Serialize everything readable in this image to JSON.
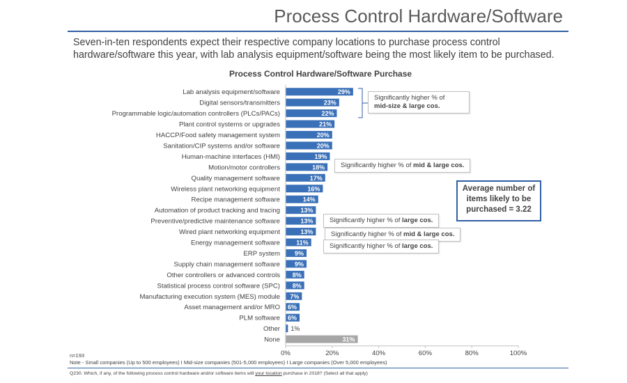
{
  "page": {
    "title": "Process Control Hardware/Software",
    "subtitle": "Seven-in-ten respondents expect their respective company locations to purchase process control hardware/software this year, with lab analysis equipment/software being the most likely item to be purchased."
  },
  "chart_data": {
    "type": "bar",
    "orientation": "horizontal",
    "title": "Process Control Hardware/Software Purchase",
    "categories": [
      "Lab analysis equipment/software",
      "Digital sensors/transmitters",
      "Programmable logic/automation controllers (PLCs/PACs)",
      "Plant control systems or upgrades",
      "HACCP/Food safety management system",
      "Sanitation/CIP systems and/or software",
      "Human-machine interfaces (HMI)",
      "Motion/motor controllers",
      "Quality management software",
      "Wireless plant networking equipment",
      "Recipe management software",
      "Automation of product tracking and tracing",
      "Preventive/predictive maintenance software",
      "Wired plant networking equipment",
      "Energy management software",
      "ERP system",
      "Supply chain management software",
      "Other controllers or advanced controls",
      "Statistical process control software (SPC)",
      "Manufacturing execution system (MES) module",
      "Asset management and/or MRO",
      "PLM software",
      "Other",
      "None"
    ],
    "values": [
      29,
      23,
      22,
      21,
      20,
      20,
      19,
      18,
      17,
      16,
      14,
      13,
      13,
      13,
      11,
      9,
      9,
      8,
      8,
      7,
      6,
      6,
      1,
      31
    ],
    "value_labels": [
      "29%",
      "23%",
      "22%",
      "21%",
      "20%",
      "20%",
      "19%",
      "18%",
      "17%",
      "16%",
      "14%",
      "13%",
      "13%",
      "13%",
      "11%",
      "9%",
      "9%",
      "8%",
      "8%",
      "7%",
      "6%",
      "6%",
      "1%",
      "31%"
    ],
    "xlim": [
      0,
      100
    ],
    "xticks": [
      "0%",
      "20%",
      "40%",
      "60%",
      "80%",
      "100%"
    ],
    "tick_values": [
      0,
      20,
      40,
      60,
      80,
      100
    ],
    "colors": {
      "bar": "#3a70b8",
      "none_bar": "#a6a6a6",
      "label_light": "#ffffff",
      "label_dark": "#404040"
    },
    "grid": false
  },
  "callouts": {
    "mid_large_1": "Significantly higher % of",
    "mid_large_2": "mid-size & large cos.",
    "hmi_prefix": "Significantly higher % of ",
    "hmi_bold": "mid & large cos.",
    "preventive_prefix": "Significantly higher % of ",
    "preventive_bold": "large cos.",
    "wired_prefix": "Significantly higher % of ",
    "wired_bold": "mid & large cos.",
    "energy_prefix": "Significantly higher % of ",
    "energy_bold": "large cos."
  },
  "average_box": {
    "line1": "Average number of",
    "line2": "items likely to be",
    "line3": "purchased = 3.22"
  },
  "notes": {
    "n": "n=193",
    "note": "Note - Small companies (Up to 500 employees) I Mid-size companies (501-5,000 employees) I Large companies (Over 5,000 employees)",
    "question_before": "Q230. Which, if any, of the following process control hardware and/or software items will ",
    "question_underlined": "your location",
    "question_after": " purchase in 2018? (Select all that apply)"
  }
}
